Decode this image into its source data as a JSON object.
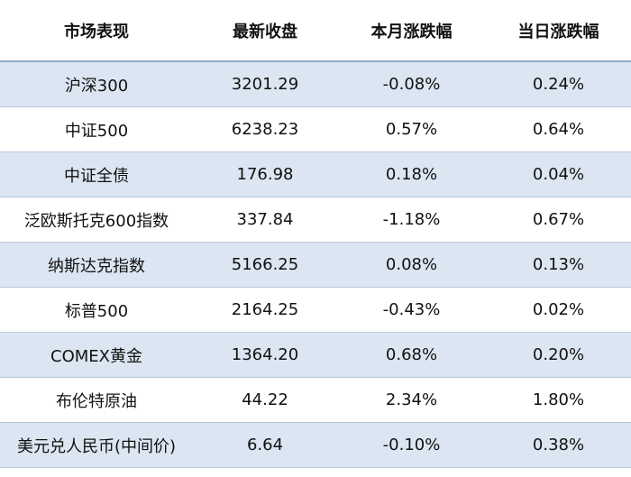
{
  "table": {
    "header": [
      "市场表现",
      "最新收盘",
      "本月涨跌幅",
      "当日涨跌幅"
    ],
    "rows": [
      [
        "沪深300",
        "3201.29",
        "-0.08%",
        "0.24%"
      ],
      [
        "中证500",
        "6238.23",
        "0.57%",
        "0.64%"
      ],
      [
        "中证全债",
        "176.98",
        "0.18%",
        "0.04%"
      ],
      [
        "泛欧斯托克600指数",
        "337.84",
        "-1.18%",
        "0.67%"
      ],
      [
        "纳斯达克指数",
        "5166.25",
        "0.08%",
        "0.13%"
      ],
      [
        "标普500",
        "2164.25",
        "-0.43%",
        "0.02%"
      ],
      [
        "COMEX黄金",
        "1364.20",
        "0.68%",
        "0.20%"
      ],
      [
        "布伦特原油",
        "44.22",
        "2.34%",
        "1.80%"
      ],
      [
        "美元兑人民币(中间价)",
        "6.64",
        "-0.10%",
        "0.38%"
      ]
    ]
  }
}
